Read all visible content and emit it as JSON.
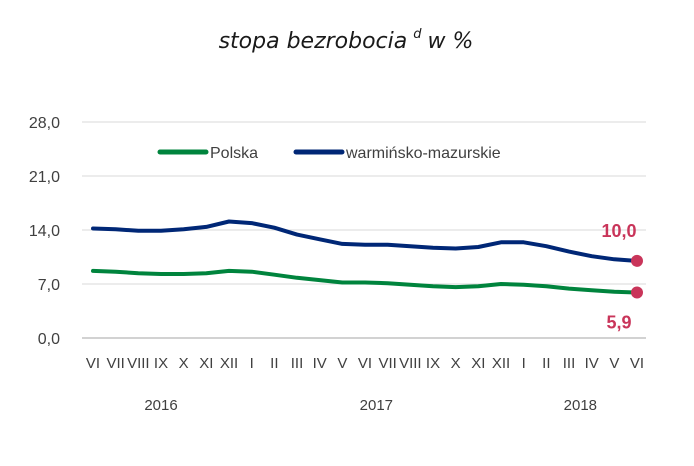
{
  "chart_data": {
    "type": "line",
    "title": "stopa bezrobocia",
    "title_superscript": "d",
    "title_suffix": "w %",
    "ylim": [
      0,
      28
    ],
    "yticks": [
      "28,0",
      "21,0",
      "14,0",
      "7,0",
      "0,0"
    ],
    "ytick_values": [
      28,
      21,
      14,
      7,
      0
    ],
    "grid": "horizontal",
    "legend_position": "top-center",
    "x": [
      "VI",
      "VII",
      "VIII",
      "IX",
      "X",
      "XI",
      "XII",
      "I",
      "II",
      "III",
      "IV",
      "V",
      "VI",
      "VII",
      "VIII",
      "IX",
      "X",
      "XI",
      "XII",
      "I",
      "II",
      "III",
      "IV",
      "V",
      "VI"
    ],
    "x_tick_labels": [
      "VI",
      "VII",
      "VIII",
      "IX",
      "X",
      "XI",
      "XII",
      "I",
      "II",
      "III",
      "IV",
      "V",
      "VI",
      "VII",
      "VIII",
      "IX",
      "X",
      "XI",
      "XII",
      "I",
      "II",
      "III",
      "IV",
      "V",
      "VI"
    ],
    "years": [
      {
        "label": "2016",
        "from": 0,
        "to": 6
      },
      {
        "label": "2017",
        "from": 7,
        "to": 18
      },
      {
        "label": "2018",
        "from": 19,
        "to": 24
      }
    ],
    "series": [
      {
        "name": "Polska",
        "color": "#00843d",
        "values": [
          8.7,
          8.6,
          8.4,
          8.3,
          8.3,
          8.4,
          8.7,
          8.6,
          8.2,
          7.8,
          7.5,
          7.2,
          7.2,
          7.1,
          6.9,
          6.7,
          6.6,
          6.7,
          7.0,
          6.9,
          6.7,
          6.4,
          6.2,
          6.0,
          5.9
        ]
      },
      {
        "name": "warmińsko-mazurskie",
        "color": "#002776",
        "values": [
          14.2,
          14.1,
          13.9,
          13.9,
          14.1,
          14.4,
          15.1,
          14.9,
          14.3,
          13.4,
          12.8,
          12.2,
          12.1,
          12.1,
          11.9,
          11.7,
          11.6,
          11.8,
          12.4,
          12.4,
          11.9,
          11.2,
          10.6,
          10.2,
          10.0
        ]
      }
    ],
    "annotations": [
      {
        "text": "10,0",
        "series": "warmińsko-mazurskie",
        "index": 24,
        "color": "#c9355a"
      },
      {
        "text": "5,9",
        "series": "Polska",
        "index": 24,
        "color": "#c9355a"
      }
    ]
  }
}
